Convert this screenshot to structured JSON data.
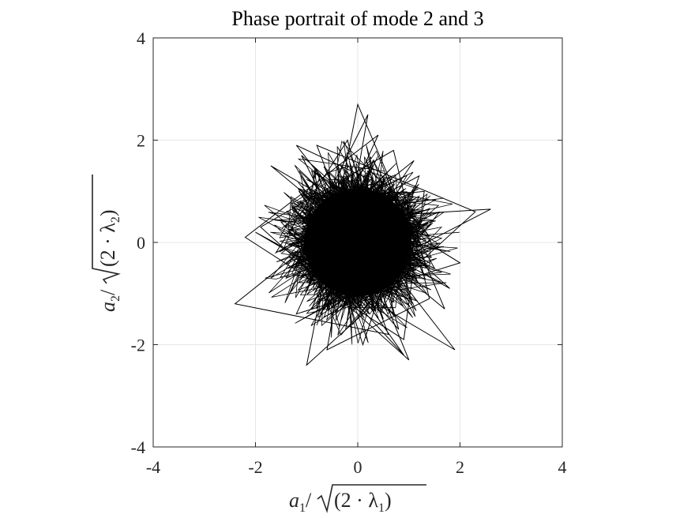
{
  "chart_data": {
    "type": "line",
    "title": "Phase portrait of mode 2 and 3",
    "xlabel": {
      "var": "a",
      "var_sub": "1",
      "sep": "/",
      "open": "(2 · λ",
      "open_sub": "1",
      "close": ")"
    },
    "ylabel": {
      "var": "a",
      "var_sub": "2",
      "sep": "/",
      "open": "(2 · λ",
      "open_sub": "2",
      "close": ")"
    },
    "xlim": [
      -4,
      4
    ],
    "ylim": [
      -4,
      4
    ],
    "xticks": [
      -4,
      -2,
      0,
      2,
      4
    ],
    "yticks": [
      -4,
      -2,
      0,
      2,
      4
    ],
    "xtick_labels": [
      "-4",
      "-2",
      "0",
      "2",
      "4"
    ],
    "ytick_labels": [
      "-4",
      "-2",
      "0",
      "2",
      "4"
    ],
    "grid": true,
    "line_color": "#000000",
    "series": [
      {
        "x": [
          0.0,
          0.6,
          -0.4,
          1.1,
          -0.9,
          0.3,
          1.5,
          -1.3,
          0.8,
          -0.2,
          -1.6,
          1.2,
          0.1,
          -0.7,
          1.8,
          -1.1,
          0.5,
          -0.3,
          1.0,
          -1.9,
          0.7,
          1.4,
          -0.6,
          0.2,
          -1.4,
          1.6,
          -0.1,
          -0.9,
          2.0,
          -1.2,
          0.4,
          -2.2,
          0.9,
          1.3,
          -0.5,
          -1.7,
          1.7,
          0.0,
          -1.0,
          2.3,
          -0.8,
          0.6,
          -2.4,
          1.1,
          -0.3,
          0.9,
          -1.5,
          2.6,
          -0.4,
          0.3,
          -1.2,
          1.9,
          -2.0,
          0.2,
          1.2,
          -0.6
        ],
        "y": [
          0.0,
          -0.8,
          1.1,
          0.4,
          -1.3,
          1.6,
          -0.5,
          0.7,
          -1.7,
          2.0,
          -0.2,
          1.3,
          -2.0,
          0.5,
          -0.9,
          1.7,
          -1.5,
          0.9,
          -2.3,
          0.3,
          1.8,
          -1.1,
          -2.1,
          2.5,
          -0.7,
          0.6,
          -1.6,
          1.4,
          -0.4,
          -1.4,
          2.1,
          0.1,
          -1.9,
          1.0,
          0.8,
          1.5,
          -1.3,
          2.7,
          -2.4,
          0.6,
          1.9,
          -1.8,
          -1.2,
          1.6,
          -0.5,
          -2.2,
          0.4,
          0.65,
          -0.9,
          1.2,
          1.9,
          -2.1,
          0.2,
          -1.0,
          0.9,
          0.0
        ]
      }
    ]
  }
}
